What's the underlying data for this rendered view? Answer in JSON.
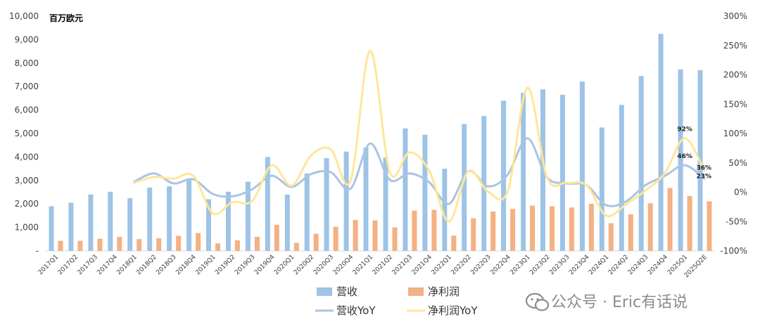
{
  "chart_data": {
    "type": "bar",
    "title": "",
    "unit_label": "百万欧元",
    "categories": [
      "2017Q1",
      "2017Q2",
      "2017Q3",
      "2017Q4",
      "2018Q1",
      "2018Q2",
      "2018Q3",
      "2018Q4",
      "2019Q1",
      "2019Q2",
      "2019Q3",
      "2019Q4",
      "2020Q1",
      "2020Q2",
      "2020Q3",
      "2020Q4",
      "2021Q1",
      "2021Q2",
      "2021Q3",
      "2021Q4",
      "2022Q1",
      "2022Q2",
      "2022Q3",
      "2022Q4",
      "2023Q1",
      "2023Q2",
      "2023Q3",
      "2023Q4",
      "2024Q1",
      "2024Q2",
      "2024Q3",
      "2024Q4",
      "2025Q1",
      "2025Q2E"
    ],
    "y_left": {
      "min": 0,
      "max": 10000,
      "ticks": [
        "-",
        "1,000",
        "2,000",
        "3,000",
        "4,000",
        "5,000",
        "6,000",
        "7,000",
        "8,000",
        "9,000",
        "10,000"
      ]
    },
    "y_right": {
      "min": -100,
      "max": 300,
      "ticks": [
        "-100%",
        "-50%",
        "0%",
        "50%",
        "100%",
        "150%",
        "200%",
        "250%",
        "300%"
      ]
    },
    "series": [
      {
        "name": "营收",
        "type": "bar",
        "axis": "left",
        "color": "#9dc3e6",
        "values": [
          1900,
          2050,
          2400,
          2520,
          2250,
          2700,
          2750,
          3050,
          2200,
          2520,
          2950,
          4000,
          2400,
          3300,
          3950,
          4230,
          4400,
          3980,
          5220,
          4950,
          3500,
          5400,
          5750,
          6400,
          6730,
          6880,
          6650,
          7220,
          5260,
          6220,
          7450,
          9250,
          7730,
          7700
        ]
      },
      {
        "name": "净利润",
        "type": "bar",
        "axis": "left",
        "color": "#f4b183",
        "values": [
          430,
          430,
          520,
          600,
          500,
          540,
          640,
          760,
          320,
          450,
          600,
          1110,
          340,
          730,
          1030,
          1320,
          1300,
          1000,
          1720,
          1750,
          650,
          1390,
          1680,
          1790,
          1930,
          1900,
          1850,
          2010,
          1180,
          1560,
          2030,
          2680,
          2340,
          2110
        ]
      },
      {
        "name": "营收YoY",
        "type": "line",
        "axis": "right",
        "color": "#a9c4e4",
        "values": [
          null,
          null,
          null,
          null,
          18,
          32,
          15,
          22,
          -3,
          -7,
          5,
          28,
          9,
          31,
          34,
          6,
          83,
          21,
          32,
          17,
          -20,
          36,
          10,
          30,
          92,
          25,
          15,
          12,
          -22,
          -16,
          12,
          28,
          46,
          23
        ]
      },
      {
        "name": "净利润YoY",
        "type": "line",
        "axis": "right",
        "color": "#ffe699",
        "values": [
          null,
          null,
          null,
          null,
          16,
          26,
          23,
          28,
          -36,
          -17,
          -15,
          46,
          11,
          63,
          73,
          19,
          241,
          34,
          68,
          37,
          -50,
          36,
          1,
          2,
          178,
          25,
          16,
          12,
          -40,
          -21,
          3,
          33,
          92,
          36
        ]
      }
    ],
    "annotations": [
      "92%",
      "46%",
      "36%",
      "23%"
    ],
    "legend": {
      "position": "bottom"
    }
  },
  "watermark": "公众号 · Eric有话说"
}
